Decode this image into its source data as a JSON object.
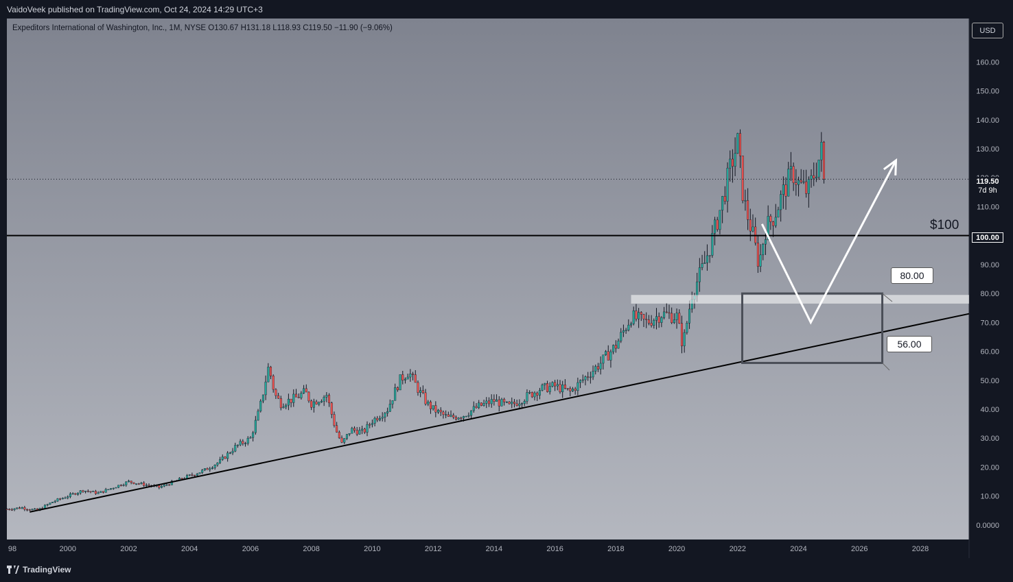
{
  "header": {
    "published": "VaidoVeek published on TradingView.com, Oct 24, 2024 14:29 UTC+3"
  },
  "legend": {
    "text": "Expeditors International of Washington, Inc., 1M, NYSE  O130.67  H131.18  L118.93  C119.50  −11.90 (−9.06%)"
  },
  "currency_button": "USD",
  "footer": {
    "brand": "TradingView"
  },
  "price_tag": {
    "price": "119.50",
    "countdown": "7d 9h"
  },
  "level_tag": "100.00",
  "annotations": {
    "level_label": "$100",
    "upper_box": "80.00",
    "lower_box": "56.00"
  },
  "colors": {
    "up": "#26a69a",
    "down": "#ef5350",
    "frame": "#131722"
  },
  "chart_data": {
    "type": "candlestick",
    "title": "Expeditors International of Washington, Inc.",
    "interval": "1M",
    "exchange": "NYSE",
    "ohlc_last": {
      "open": 130.67,
      "high": 131.18,
      "low": 118.93,
      "close": 119.5,
      "change": -11.9,
      "change_pct": -9.06
    },
    "x_ticks": [
      "98",
      "2000",
      "2002",
      "2004",
      "2006",
      "2008",
      "2010",
      "2012",
      "2014",
      "2016",
      "2018",
      "2020",
      "2022",
      "2024",
      "2026",
      "2028"
    ],
    "x_tick_years": [
      1998,
      2000,
      2002,
      2004,
      2006,
      2008,
      2010,
      2012,
      2014,
      2016,
      2018,
      2020,
      2022,
      2024,
      2026,
      2028
    ],
    "y_ticks": [
      "160.00",
      "150.00",
      "140.00",
      "130.00",
      "120.00",
      "110.00",
      "100.00",
      "90.00",
      "80.00",
      "70.00",
      "60.00",
      "50.00",
      "40.00",
      "30.00",
      "20.00",
      "10.00",
      "0.0000"
    ],
    "y_tick_values": [
      160,
      150,
      140,
      130,
      120,
      110,
      100,
      90,
      80,
      70,
      60,
      50,
      40,
      30,
      20,
      10,
      0
    ],
    "xlim": [
      1998.0,
      2029.6
    ],
    "ylim": [
      -5,
      175
    ],
    "price_path": [
      [
        1998.0,
        5.5
      ],
      [
        1998.5,
        6.0
      ],
      [
        1999.0,
        5.0
      ],
      [
        1999.5,
        8
      ],
      [
        2000.0,
        10
      ],
      [
        2000.5,
        12
      ],
      [
        2001.0,
        11
      ],
      [
        2001.5,
        13
      ],
      [
        2002.0,
        15
      ],
      [
        2002.5,
        14
      ],
      [
        2003.0,
        13
      ],
      [
        2003.5,
        15
      ],
      [
        2004.0,
        17
      ],
      [
        2004.5,
        19
      ],
      [
        2005.0,
        22
      ],
      [
        2005.5,
        27
      ],
      [
        2006.0,
        30
      ],
      [
        2006.3,
        40
      ],
      [
        2006.6,
        55
      ],
      [
        2006.8,
        45
      ],
      [
        2007.0,
        42
      ],
      [
        2007.5,
        44
      ],
      [
        2007.8,
        46
      ],
      [
        2008.0,
        42
      ],
      [
        2008.5,
        45
      ],
      [
        2008.8,
        33
      ],
      [
        2009.0,
        28
      ],
      [
        2009.3,
        33
      ],
      [
        2009.7,
        32
      ],
      [
        2010.0,
        36
      ],
      [
        2010.5,
        40
      ],
      [
        2010.9,
        50
      ],
      [
        2011.2,
        53
      ],
      [
        2011.5,
        47
      ],
      [
        2011.8,
        42
      ],
      [
        2012.0,
        40
      ],
      [
        2012.5,
        37
      ],
      [
        2013.0,
        38
      ],
      [
        2013.5,
        41
      ],
      [
        2014.0,
        43
      ],
      [
        2014.5,
        41
      ],
      [
        2015.0,
        44
      ],
      [
        2015.5,
        47
      ],
      [
        2016.0,
        48
      ],
      [
        2016.5,
        46
      ],
      [
        2017.0,
        51
      ],
      [
        2017.5,
        56
      ],
      [
        2018.0,
        62
      ],
      [
        2018.5,
        72
      ],
      [
        2019.0,
        70
      ],
      [
        2019.5,
        73
      ],
      [
        2020.0,
        72
      ],
      [
        2020.2,
        62
      ],
      [
        2020.5,
        80
      ],
      [
        2020.9,
        90
      ],
      [
        2021.2,
        100
      ],
      [
        2021.5,
        112
      ],
      [
        2021.8,
        125
      ],
      [
        2022.0,
        132
      ],
      [
        2022.2,
        112
      ],
      [
        2022.5,
        100
      ],
      [
        2022.7,
        90
      ],
      [
        2022.9,
        102
      ],
      [
        2023.2,
        107
      ],
      [
        2023.5,
        115
      ],
      [
        2023.8,
        122
      ],
      [
        2024.0,
        118
      ],
      [
        2024.3,
        115
      ],
      [
        2024.6,
        124
      ],
      [
        2024.8,
        131
      ],
      [
        2024.85,
        119.5
      ]
    ],
    "last_price": 119.5,
    "horizontal_level": 100,
    "trendline": [
      [
        1998.75,
        4.5
      ],
      [
        2029.6,
        73
      ]
    ],
    "supply_zone": {
      "from_year": 2018.5,
      "y_low": 76.5,
      "y_high": 79.5
    },
    "target_box": {
      "x0": 2022.15,
      "x1": 2026.75,
      "y0": 56,
      "y1": 80
    },
    "projection_path": [
      [
        2022.8,
        104
      ],
      [
        2024.4,
        70
      ],
      [
        2027.2,
        126
      ]
    ]
  }
}
